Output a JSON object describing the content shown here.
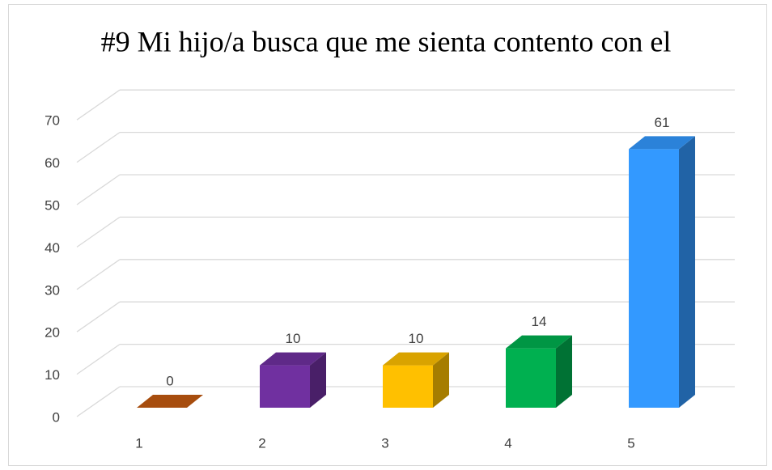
{
  "chart_data": {
    "type": "bar3d",
    "title": "#9 Mi hijo/a busca que me sienta contento con el",
    "categories": [
      "1",
      "2",
      "3",
      "4",
      "5"
    ],
    "values": [
      0,
      10,
      10,
      14,
      61
    ],
    "colors": [
      "#C55A11",
      "#7030A0",
      "#FFC000",
      "#00B050",
      "#3399FF"
    ],
    "ylim": [
      0,
      70
    ],
    "yticks": [
      0,
      10,
      20,
      30,
      40,
      50,
      60,
      70
    ],
    "grid": true
  }
}
